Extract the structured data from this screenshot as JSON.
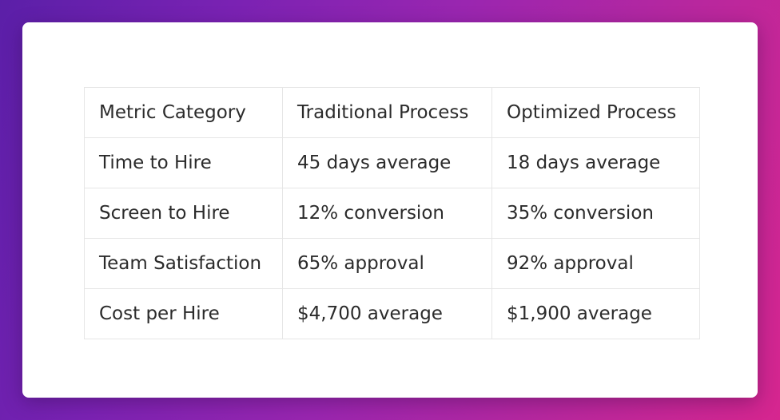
{
  "table": {
    "header": [
      "Metric Category",
      "Traditional Process",
      "Optimized Process"
    ],
    "rows": [
      [
        "Time to Hire",
        "45 days average",
        "18 days average"
      ],
      [
        "Screen to Hire",
        "12% conversion",
        "35% conversion"
      ],
      [
        "Team Satisfaction",
        "65% approval",
        "92% approval"
      ],
      [
        "Cost per Hire",
        "$4,700 average",
        "$1,900 average"
      ]
    ]
  }
}
